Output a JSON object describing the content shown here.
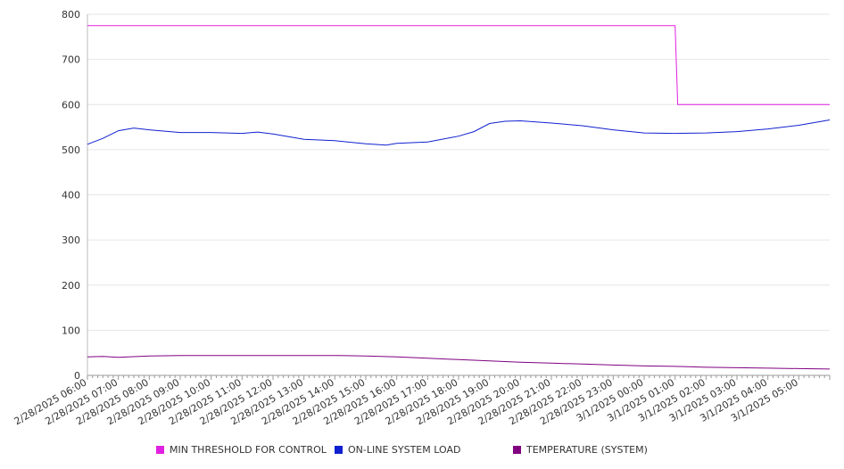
{
  "chart_data": {
    "type": "line",
    "title": "",
    "xlabel": "",
    "ylabel": "",
    "ylim": [
      0,
      800
    ],
    "yticks": [
      0,
      100,
      200,
      300,
      400,
      500,
      600,
      700,
      800
    ],
    "xlim": [
      "2/28/2025 06:00",
      "3/1/2025 06:00"
    ],
    "x_tick_labels": [
      "2/28/2025 06:00",
      "2/28/2025 07:00",
      "2/28/2025 08:00",
      "2/28/2025 09:00",
      "2/28/2025 10:00",
      "2/28/2025 11:00",
      "2/28/2025 12:00",
      "2/28/2025 13:00",
      "2/28/2025 14:00",
      "2/28/2025 15:00",
      "2/28/2025 16:00",
      "2/28/2025 17:00",
      "2/28/2025 18:00",
      "2/28/2025 19:00",
      "2/28/2025 20:00",
      "2/28/2025 21:00",
      "2/28/2025 22:00",
      "2/28/2025 23:00",
      "3/1/2025 00:00",
      "3/1/2025 01:00",
      "3/1/2025 02:00",
      "3/1/2025 03:00",
      "3/1/2025 04:00",
      "3/1/2025 05:00"
    ],
    "grid": true,
    "legend_position": "bottom",
    "series": [
      {
        "name": "MIN THRESHOLD FOR CONTROL",
        "color": "#e020e0",
        "points": [
          [
            "2/28/2025 06:00",
            775
          ],
          [
            "3/1/2025 01:00",
            775
          ],
          [
            "3/1/2025 01:05",
            600
          ],
          [
            "3/1/2025 06:00",
            600
          ]
        ]
      },
      {
        "name": "ON-LINE SYSTEM LOAD",
        "color": "#1020d0",
        "points": [
          [
            "2/28/2025 06:00",
            512
          ],
          [
            "2/28/2025 06:30",
            525
          ],
          [
            "2/28/2025 07:00",
            542
          ],
          [
            "2/28/2025 07:30",
            548
          ],
          [
            "2/28/2025 08:00",
            544
          ],
          [
            "2/28/2025 08:30",
            541
          ],
          [
            "2/28/2025 09:00",
            538
          ],
          [
            "2/28/2025 10:00",
            538
          ],
          [
            "2/28/2025 11:00",
            536
          ],
          [
            "2/28/2025 11:30",
            539
          ],
          [
            "2/28/2025 12:00",
            535
          ],
          [
            "2/28/2025 13:00",
            523
          ],
          [
            "2/28/2025 14:00",
            520
          ],
          [
            "2/28/2025 15:00",
            513
          ],
          [
            "2/28/2025 15:40",
            510
          ],
          [
            "2/28/2025 16:00",
            514
          ],
          [
            "2/28/2025 17:00",
            517
          ],
          [
            "2/28/2025 18:00",
            530
          ],
          [
            "2/28/2025 18:30",
            540
          ],
          [
            "2/28/2025 19:00",
            558
          ],
          [
            "2/28/2025 19:30",
            563
          ],
          [
            "2/28/2025 20:00",
            564
          ],
          [
            "2/28/2025 21:00",
            559
          ],
          [
            "2/28/2025 22:00",
            553
          ],
          [
            "2/28/2025 23:00",
            544
          ],
          [
            "3/1/2025 00:00",
            537
          ],
          [
            "3/1/2025 01:00",
            536
          ],
          [
            "3/1/2025 02:00",
            537
          ],
          [
            "3/1/2025 03:00",
            540
          ],
          [
            "3/1/2025 04:00",
            546
          ],
          [
            "3/1/2025 05:00",
            554
          ],
          [
            "3/1/2025 06:00",
            566
          ]
        ]
      },
      {
        "name": "TEMPERATURE (SYSTEM)",
        "color": "#800080",
        "points": [
          [
            "2/28/2025 06:00",
            41
          ],
          [
            "2/28/2025 06:30",
            42
          ],
          [
            "2/28/2025 07:00",
            40
          ],
          [
            "2/28/2025 08:00",
            43
          ],
          [
            "2/28/2025 09:00",
            44
          ],
          [
            "2/28/2025 12:00",
            44
          ],
          [
            "2/28/2025 14:00",
            44
          ],
          [
            "2/28/2025 15:00",
            43
          ],
          [
            "2/28/2025 16:00",
            41
          ],
          [
            "2/28/2025 17:00",
            38
          ],
          [
            "2/28/2025 18:00",
            35
          ],
          [
            "2/28/2025 19:00",
            32
          ],
          [
            "2/28/2025 20:00",
            29
          ],
          [
            "2/28/2025 21:00",
            27
          ],
          [
            "2/28/2025 22:00",
            25
          ],
          [
            "2/28/2025 23:00",
            23
          ],
          [
            "3/1/2025 00:00",
            21
          ],
          [
            "3/1/2025 01:00",
            20
          ],
          [
            "3/1/2025 02:00",
            18
          ],
          [
            "3/1/2025 03:00",
            17
          ],
          [
            "3/1/2025 04:00",
            16
          ],
          [
            "3/1/2025 05:00",
            15
          ],
          [
            "3/1/2025 06:00",
            14
          ]
        ]
      }
    ]
  },
  "legend": {
    "items": [
      {
        "label": "MIN THRESHOLD FOR CONTROL",
        "color": "#e020e0"
      },
      {
        "label": "ON-LINE SYSTEM LOAD",
        "color": "#1020d0"
      },
      {
        "label": "TEMPERATURE (SYSTEM)",
        "color": "#800080"
      }
    ]
  }
}
